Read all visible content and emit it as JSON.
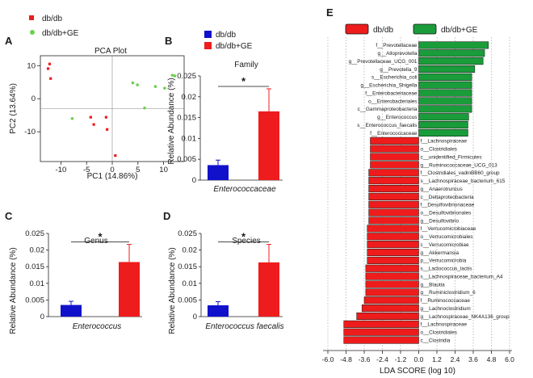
{
  "panels": {
    "A": {
      "label": "A",
      "legend": [
        {
          "name": "db/db",
          "color": "#ee1c1c"
        },
        {
          "name": "db/db+GE",
          "color": "#6cd04e"
        }
      ]
    },
    "B": {
      "label": "B",
      "legend": [
        {
          "name": "db/db",
          "color": "#1111cc"
        },
        {
          "name": "db/db+GE",
          "color": "#ee1c1c"
        }
      ]
    },
    "C": {
      "label": "C"
    },
    "D": {
      "label": "D"
    },
    "E": {
      "label": "E",
      "legend": [
        {
          "name": "db/db",
          "color": "#ee1c1c"
        },
        {
          "name": "db/db+GE",
          "color": "#1a9c3a"
        }
      ]
    }
  },
  "chart_data": [
    {
      "id": "pca",
      "type": "scatter",
      "title": "PCA Plot",
      "xlabel": "PC1 (14.86%)",
      "ylabel": "PC2 (13.64%)",
      "xlim": [
        -14,
        14
      ],
      "ylim": [
        -19,
        13
      ],
      "xticks": [
        -10,
        -5,
        0,
        5,
        10
      ],
      "yticks": [
        -10,
        0,
        10
      ],
      "series": [
        {
          "name": "db/db",
          "color": "#ee1c1c",
          "points": [
            [
              -12.2,
              10.5
            ],
            [
              -12.5,
              9.1
            ],
            [
              -12.0,
              6.1
            ],
            [
              -4.2,
              -5.6
            ],
            [
              -3.6,
              -7.8
            ],
            [
              -1.2,
              -5.6
            ],
            [
              -1.0,
              -9.3
            ],
            [
              0.6,
              -17.2
            ]
          ]
        },
        {
          "name": "db/db+GE",
          "color": "#6cd04e",
          "points": [
            [
              -7.8,
              -6.0
            ],
            [
              4.0,
              4.8
            ],
            [
              4.9,
              4.2
            ],
            [
              6.3,
              -2.8
            ],
            [
              8.4,
              3.7
            ],
            [
              10.2,
              3.2
            ],
            [
              11.7,
              7.1
            ],
            [
              12.2,
              6.9
            ]
          ]
        }
      ]
    },
    {
      "id": "family",
      "type": "bar",
      "title": "Family",
      "xlabel": "Enterococcaceae",
      "ylabel": "Relative Abundance (%)",
      "ylim": [
        0,
        0.025
      ],
      "yticks": [
        "0",
        "0.005",
        "0.01",
        "0.015",
        "0.02",
        "0.025"
      ],
      "significance": "*",
      "series": [
        {
          "name": "db/db",
          "color": "#1111cc",
          "value": 0.0036,
          "error": 0.0012
        },
        {
          "name": "db/db+GE",
          "color": "#ee1c1c",
          "value": 0.0165,
          "error": 0.0054
        }
      ]
    },
    {
      "id": "genus",
      "type": "bar",
      "title": "Genus",
      "xlabel": "Enterococcus",
      "ylabel": "Relative Abundance (%)",
      "ylim": [
        0,
        0.025
      ],
      "yticks": [
        "0",
        "0.005",
        "0.01",
        "0.015",
        "0.02",
        "0.025"
      ],
      "significance": "*",
      "series": [
        {
          "name": "db/db",
          "color": "#1111cc",
          "value": 0.0035,
          "error": 0.0011
        },
        {
          "name": "db/db+GE",
          "color": "#ee1c1c",
          "value": 0.0164,
          "error": 0.0053
        }
      ]
    },
    {
      "id": "species",
      "type": "bar",
      "title": "Species",
      "xlabel": "Enterococcus faecalis",
      "ylabel": "Relative Abundance (%)",
      "ylim": [
        0,
        0.025
      ],
      "yticks": [
        "0",
        "0.005",
        "0.01",
        "0.015",
        "0.02",
        "0.025"
      ],
      "significance": "*",
      "series": [
        {
          "name": "db/db",
          "color": "#1111cc",
          "value": 0.0034,
          "error": 0.0011
        },
        {
          "name": "db/db+GE",
          "color": "#ee1c1c",
          "value": 0.0163,
          "error": 0.0054
        }
      ]
    },
    {
      "id": "lefse",
      "type": "bar",
      "orientation": "horizontal",
      "xlabel": "LDA SCORE (log 10)",
      "xlim": [
        -6.0,
        6.0
      ],
      "xticks": [
        "-6.0",
        "-4.8",
        "-3.6",
        "-2.4",
        "-1.2",
        "0.0",
        "1.2",
        "2.4",
        "3.6",
        "4.8",
        "6.0"
      ],
      "grid": true,
      "categories": [
        "f__Prevotellaceae",
        "g__Alloprevotella",
        "g__Prevotellaceae_UCG_001",
        "g__Prevotella_9",
        "s__Escherichia_coli",
        "g__Escherichia_Shigella",
        "f__Enterobacteriaceae",
        "o__Enterobacteriales",
        "c__Gammaproteobacteria",
        "g__Enterococcus",
        "s__Enterococcus_faecalis",
        "f__Enterococcaceae",
        "f__Lachnospiraceae",
        "o__Clostridiales",
        "c__unidentified_Firmicutes",
        "g__Ruminococcaceae_UCG_013",
        "f__Clostridiales_vadinBB60_group",
        "s__Lachnospiraceae_bacterium_615",
        "g__Anaerotruncus",
        "c__Deltaproteobacteria",
        "f__Desulfovibrionaceae",
        "o__Desulfovibrionales",
        "g__Desulfovibrio",
        "f__Verrucomicrobiaceae",
        "o__Verrucomicrobiales",
        "c__Verrucomicrobiae",
        "g__Akkermansia",
        "p__Verrucomicrobia",
        "s__Lactococcus_lactis",
        "s__Lachnospiraceae_bacterium_A4",
        "g__Blautia",
        "g__Ruminiclostridium_6",
        "f__Ruminococcaceae",
        "g__Lachnoclostridium",
        "g__Lachnospiraceae_NK4A136_group",
        "f__Lachnospiraceae",
        "o__Clostridiales",
        "c__Clostridia"
      ],
      "values": [
        4.6,
        4.35,
        4.25,
        3.7,
        3.5,
        3.5,
        3.5,
        3.5,
        3.5,
        3.3,
        3.25,
        3.25,
        -3.2,
        -3.2,
        -3.2,
        -3.2,
        -3.3,
        -3.3,
        -3.3,
        -3.3,
        -3.3,
        -3.3,
        -3.3,
        -3.4,
        -3.4,
        -3.4,
        -3.4,
        -3.4,
        -3.5,
        -3.5,
        -3.5,
        -3.5,
        -3.6,
        -3.75,
        -4.1,
        -4.95,
        -4.95,
        -4.95
      ],
      "colors": {
        "positive": "#1a9c3a",
        "negative": "#ee1c1c"
      }
    }
  ]
}
